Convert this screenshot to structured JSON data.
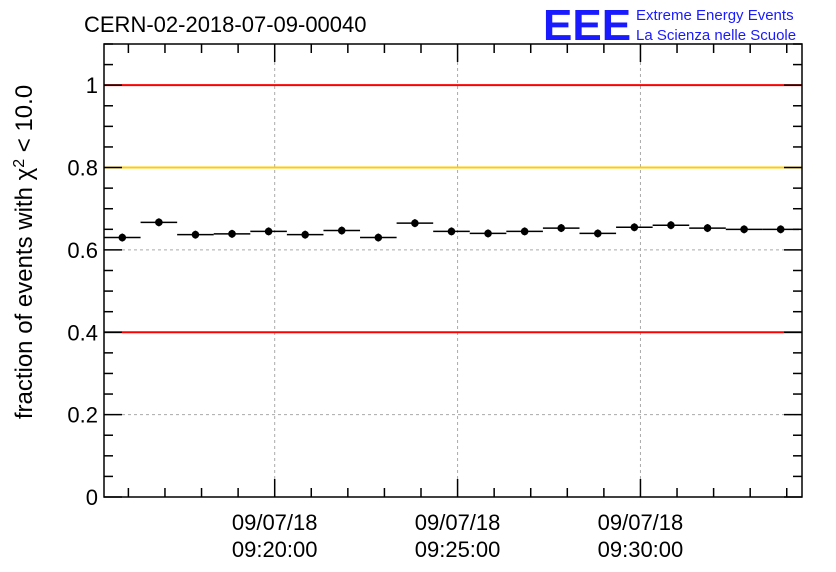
{
  "header": {
    "title": "CERN-02-2018-07-09-00040",
    "logo": {
      "mark": "EEE",
      "line1": "Extreme Energy Events",
      "line2": "La Scienza nelle Scuole",
      "color": "#1a1aff"
    }
  },
  "chart_data": {
    "type": "scatter",
    "title": "CERN-02-2018-07-09-00040",
    "ylabel_prefix": "fraction of events with χ",
    "ylabel_sup": "2",
    "ylabel_suffix": " < 10.0",
    "xlabel": "",
    "xlim": [
      "09/07/18 09:15:20",
      "09/07/18 09:34:25"
    ],
    "ylim": [
      0,
      1.1
    ],
    "y_ticks": [
      0,
      0.2,
      0.4,
      0.6,
      0.8,
      1
    ],
    "y_tick_labels": [
      "0",
      "0.2",
      "0.4",
      "0.6",
      "0.8",
      "1"
    ],
    "x_ticks": [
      {
        "date": "09/07/18",
        "time": "09:20:00"
      },
      {
        "date": "09/07/18",
        "time": "09:25:00"
      },
      {
        "date": "09/07/18",
        "time": "09:30:00"
      }
    ],
    "grid": true,
    "reference_lines": [
      {
        "y": 1.0,
        "color": "#ff0000"
      },
      {
        "y": 0.8,
        "color": "#ffcc00"
      },
      {
        "y": 0.4,
        "color": "#ff0000"
      }
    ],
    "bin_width_seconds": 60,
    "series": [
      {
        "marker_color": "#000000",
        "x": [
          "09:15:50",
          "09:16:50",
          "09:17:50",
          "09:18:50",
          "09:19:50",
          "09:20:50",
          "09:21:50",
          "09:22:50",
          "09:23:50",
          "09:24:50",
          "09:25:50",
          "09:26:50",
          "09:27:50",
          "09:28:50",
          "09:29:50",
          "09:30:50",
          "09:31:50",
          "09:32:50",
          "09:33:50"
        ],
        "y": [
          0.63,
          0.667,
          0.637,
          0.639,
          0.645,
          0.637,
          0.647,
          0.63,
          0.665,
          0.645,
          0.64,
          0.645,
          0.653,
          0.64,
          0.655,
          0.66,
          0.653,
          0.65,
          0.65
        ]
      }
    ]
  }
}
